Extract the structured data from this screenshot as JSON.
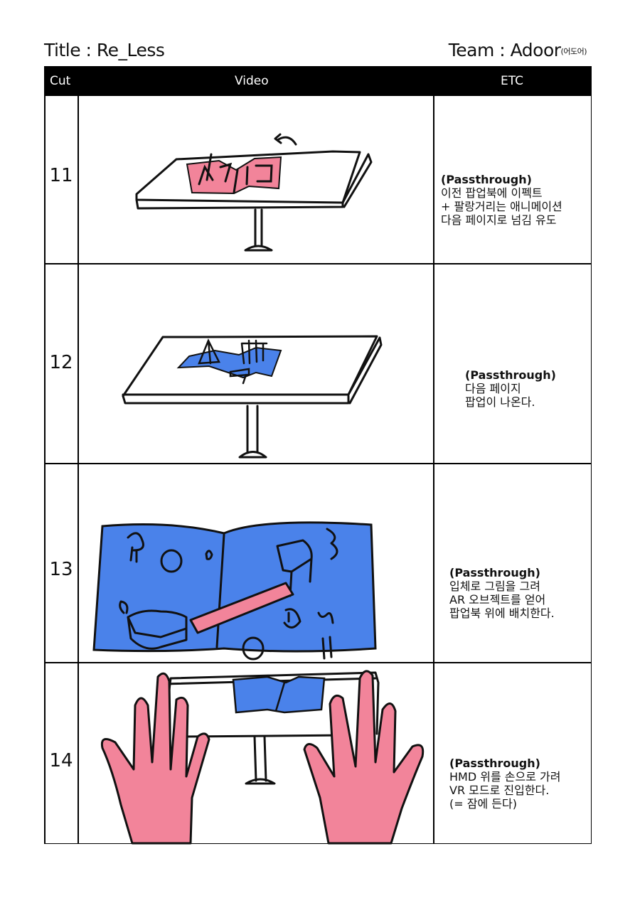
{
  "header": {
    "title": "Title : Re_Less",
    "team": "Team : Adoor",
    "team_korean": "(어도어)"
  },
  "table": {
    "columns": [
      "Cut",
      "Video",
      "ETC"
    ],
    "rows": [
      {
        "cut": "11",
        "etc_heading": "(Passthrough)",
        "etc_lines": "이전 팝업북에 이펙트\n+ 팔랑거리는 애니메이션\n다음 페이지로 넘김 유도"
      },
      {
        "cut": "12",
        "etc_heading": "(Passthrough)",
        "etc_lines": "다음 페이지\n팝업이 나온다."
      },
      {
        "cut": "13",
        "etc_heading": "(Passthrough)",
        "etc_lines": "입체로 그림을 그려\nAR 오브젝트를 얻어\n팝업북 위에 배치한다."
      },
      {
        "cut": "14",
        "etc_heading": "(Passthrough)",
        "etc_lines": "HMD 위를 손으로 가려\nVR 모드로 진입한다.\n(= 잠에 든다)"
      }
    ]
  },
  "colors": {
    "pink": "#f2849a",
    "blue": "#4a82ea",
    "ink": "#111111"
  }
}
